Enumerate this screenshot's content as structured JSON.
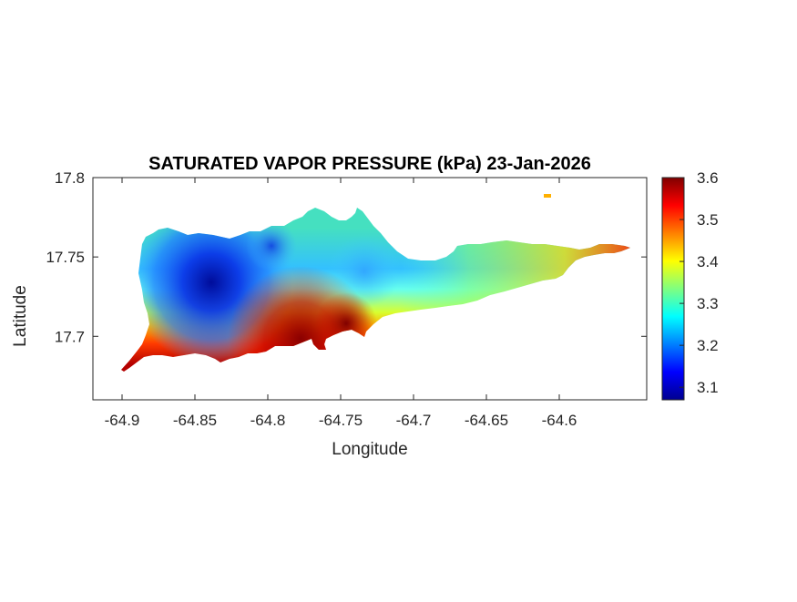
{
  "chart_data": {
    "type": "heatmap",
    "title": "SATURATED VAPOR PRESSURE (kPa) 23-Jan-2026",
    "xlabel": "Longitude",
    "ylabel": "Latitude",
    "xlim": [
      -64.92,
      -64.54
    ],
    "ylim": [
      17.66,
      17.8
    ],
    "x_ticks": [
      -64.9,
      -64.85,
      -64.8,
      -64.75,
      -64.7,
      -64.65,
      -64.6
    ],
    "x_tick_labels": [
      "-64.9",
      "-64.85",
      "-64.8",
      "-64.75",
      "-64.7",
      "-64.65",
      "-64.6"
    ],
    "y_ticks": [
      17.7,
      17.75,
      17.8
    ],
    "y_tick_labels": [
      "17.7",
      "17.75",
      "17.8"
    ],
    "colorbar": {
      "colormap": "jet",
      "limits": [
        3.07,
        3.6
      ],
      "ticks": [
        3.1,
        3.2,
        3.3,
        3.4,
        3.5,
        3.6
      ],
      "tick_labels": [
        "3.1",
        "3.2",
        "3.3",
        "3.4",
        "3.5",
        "3.6"
      ],
      "placement": "right"
    },
    "grid": false,
    "colors": {
      "land_high": "#8b0000",
      "land_low": "#00008f",
      "background": "#ffffff",
      "axis": "#262626"
    }
  }
}
